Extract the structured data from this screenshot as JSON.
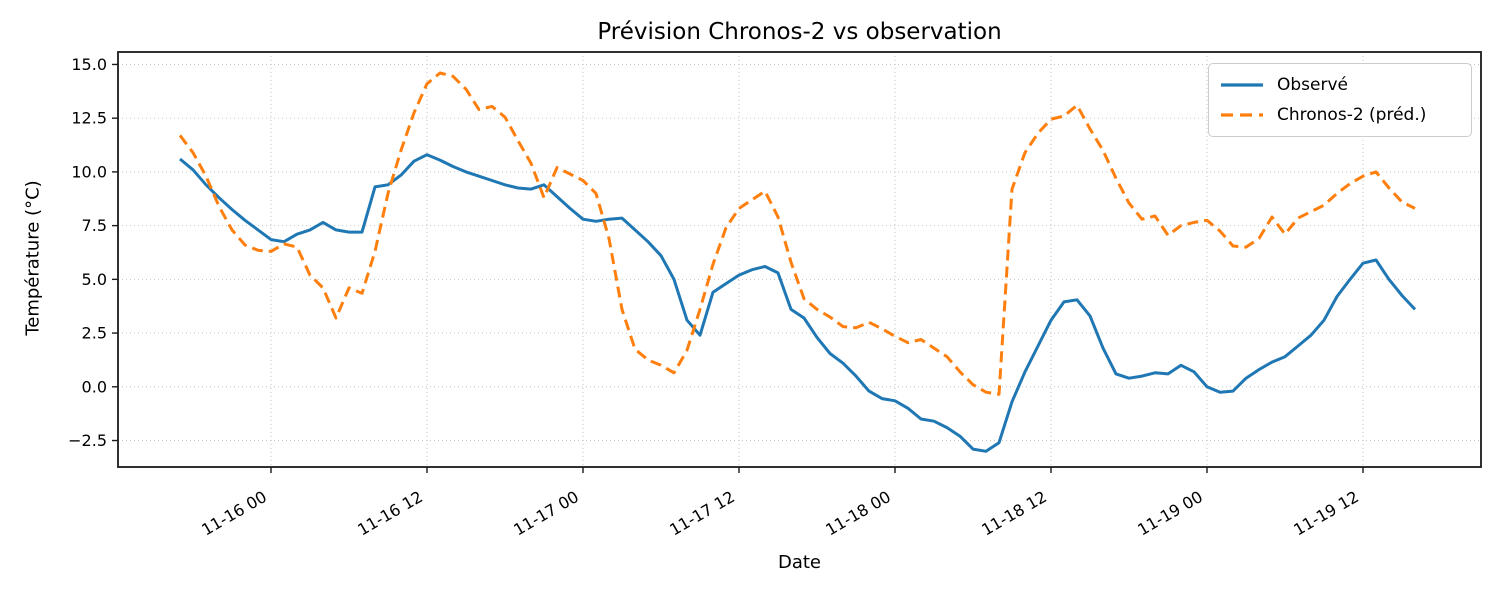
{
  "chart_data": {
    "type": "line",
    "title": "Prévision Chronos-2 vs observation",
    "xlabel": "Date",
    "ylabel": "Température (°C)",
    "background_color": "#ffffff",
    "axes_frame_color": "#1a1a1a",
    "grid": "dotted light gray, on",
    "legend_position": "top-right, framed",
    "x_description": "hourly points, first point at 11-15 17:00, last at 11-19 16:00",
    "x_ticks": [
      {
        "label": "11-16 00",
        "hour_index": 7
      },
      {
        "label": "11-16 12",
        "hour_index": 19
      },
      {
        "label": "11-17 00",
        "hour_index": 31
      },
      {
        "label": "11-17 12",
        "hour_index": 43
      },
      {
        "label": "11-18 00",
        "hour_index": 55
      },
      {
        "label": "11-18 12",
        "hour_index": 67
      },
      {
        "label": "11-19 00",
        "hour_index": 79
      },
      {
        "label": "11-19 12",
        "hour_index": 91
      }
    ],
    "y_ticks": [
      {
        "label": "15.0",
        "value": 15.0
      },
      {
        "label": "12.5",
        "value": 12.5
      },
      {
        "label": "10.0",
        "value": 10.0
      },
      {
        "label": "7.5",
        "value": 7.5
      },
      {
        "label": "5.0",
        "value": 5.0
      },
      {
        "label": "2.5",
        "value": 2.5
      },
      {
        "label": "0.0",
        "value": 0.0
      },
      {
        "label": "−2.5",
        "value": -2.5
      }
    ],
    "ylim": [
      -3.7,
      15.6
    ],
    "xlim_hours": [
      -4.8,
      100.1
    ],
    "series": [
      {
        "name": "Observé",
        "color": "#1f77b4",
        "line_style": "solid",
        "line_width": 3,
        "values": [
          10.6,
          10.1,
          9.4,
          8.8,
          8.25,
          7.75,
          7.3,
          6.85,
          6.75,
          7.1,
          7.3,
          7.65,
          7.3,
          7.2,
          7.2,
          9.3,
          9.4,
          9.85,
          10.5,
          10.8,
          10.55,
          10.25,
          10.0,
          9.8,
          9.6,
          9.4,
          9.25,
          9.2,
          9.4,
          8.85,
          8.3,
          7.8,
          7.7,
          7.8,
          7.85,
          7.3,
          6.75,
          6.1,
          5.0,
          3.1,
          2.4,
          4.4,
          4.8,
          5.2,
          5.45,
          5.6,
          5.3,
          3.6,
          3.2,
          2.3,
          1.55,
          1.1,
          0.5,
          -0.2,
          -0.55,
          -0.65,
          -1.0,
          -1.5,
          -1.6,
          -1.9,
          -2.3,
          -2.9,
          -3.0,
          -2.6,
          -0.7,
          0.7,
          1.9,
          3.1,
          3.95,
          4.05,
          3.3,
          1.8,
          0.6,
          0.4,
          0.5,
          0.65,
          0.6,
          1.0,
          0.7,
          0.0,
          -0.25,
          -0.2,
          0.4,
          0.8,
          1.15,
          1.4,
          1.9,
          2.4,
          3.1,
          4.2,
          5.0,
          5.75,
          5.9,
          5.0,
          4.25,
          3.6
        ]
      },
      {
        "name": "Chronos-2 (préd.)",
        "color": "#ff7f0e",
        "line_style": "dashed",
        "line_width": 3,
        "values": [
          11.7,
          10.9,
          9.8,
          8.4,
          7.3,
          6.6,
          6.35,
          6.3,
          6.65,
          6.5,
          5.2,
          4.6,
          3.2,
          4.6,
          4.35,
          6.3,
          9.0,
          11.0,
          12.75,
          14.1,
          14.6,
          14.45,
          13.85,
          12.9,
          13.05,
          12.55,
          11.45,
          10.4,
          8.8,
          10.2,
          9.9,
          9.6,
          9.0,
          6.9,
          3.6,
          1.75,
          1.25,
          1.0,
          0.65,
          1.7,
          3.6,
          5.7,
          7.4,
          8.3,
          8.7,
          9.1,
          7.9,
          5.8,
          4.1,
          3.6,
          3.25,
          2.8,
          2.75,
          3.0,
          2.7,
          2.35,
          2.05,
          2.2,
          1.8,
          1.4,
          0.7,
          0.1,
          -0.25,
          -0.35,
          9.2,
          10.9,
          11.8,
          12.45,
          12.6,
          13.1,
          12.0,
          11.0,
          9.7,
          8.55,
          7.8,
          7.95,
          7.05,
          7.5,
          7.65,
          7.75,
          7.25,
          6.55,
          6.5,
          6.9,
          7.9,
          7.1,
          7.85,
          8.15,
          8.45,
          9.0,
          9.45,
          9.8,
          10.0,
          9.25,
          8.6,
          8.3
        ]
      }
    ]
  }
}
